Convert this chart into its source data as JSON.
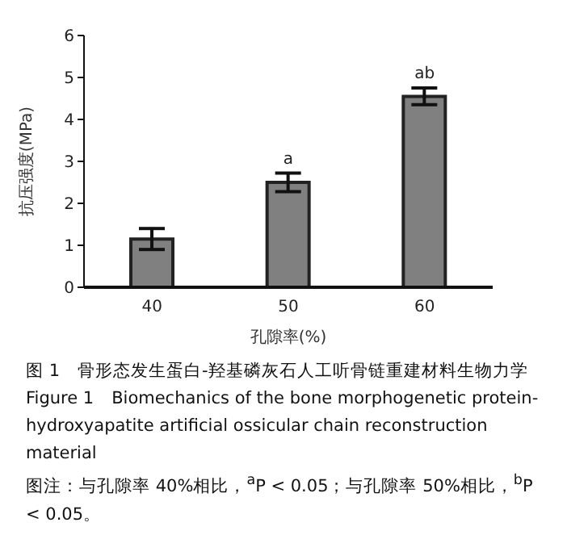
{
  "chart_data": {
    "type": "bar",
    "title": "图 1　骨形态发生蛋白-羟基磷灰石人工听骨链重建材料生物力学",
    "subtitle": "Figure 1　Biomechanics of the bone morphogenetic protein-hydroxyapatite artificial ossicular chain reconstruction material",
    "xlabel": "孔隙率(%)",
    "ylabel": "抗压强度(MPa)",
    "categories": [
      "40",
      "50",
      "60"
    ],
    "values": [
      1.15,
      2.5,
      4.55
    ],
    "errors": [
      0.25,
      0.22,
      0.2
    ],
    "color": "#808080",
    "ylim": [
      0,
      6
    ],
    "yticks": [
      0,
      1,
      2,
      3,
      4,
      5,
      6
    ],
    "annotations": [
      {
        "text": "a",
        "x": "50",
        "y": 2.72
      },
      {
        "text": "ab",
        "x": "60",
        "y": 4.75
      },
      "图注：与孔隙率 40%相比，$^{a}$P < 0.05；与孔隙率 50%相比，$^{b}$P < 0.05。"
    ]
  }
}
